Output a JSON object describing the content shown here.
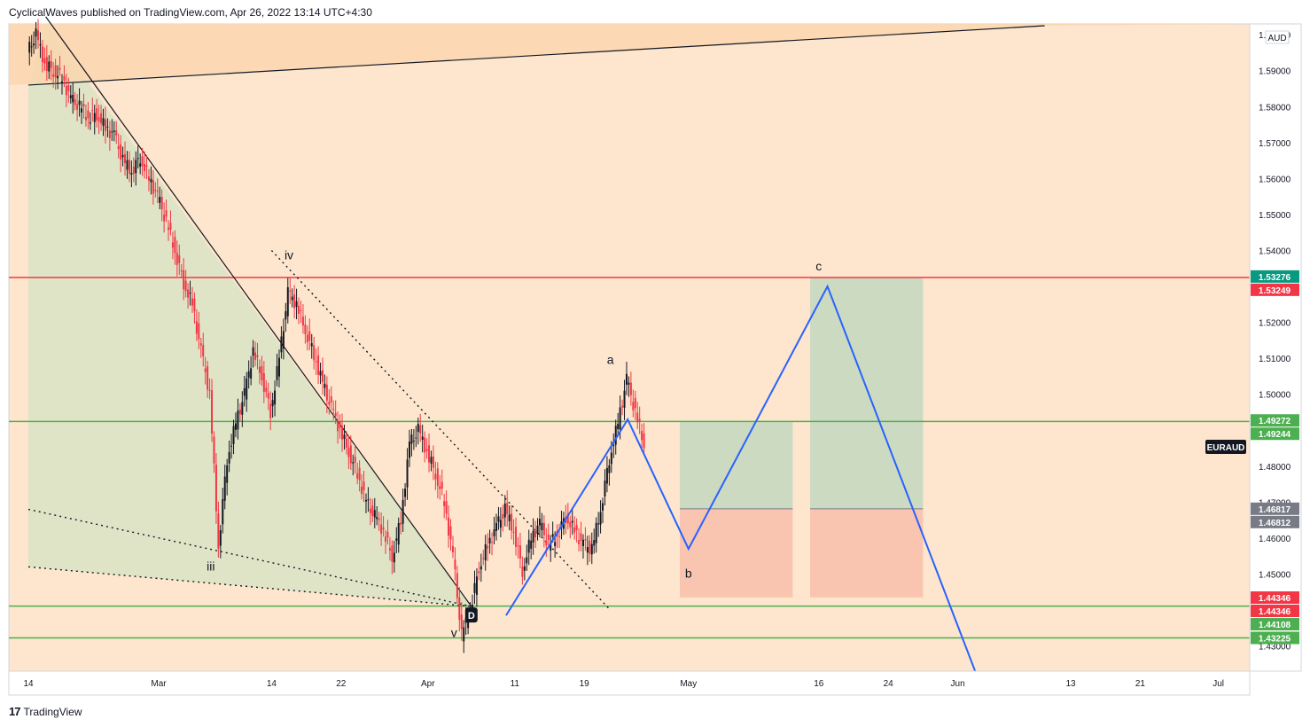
{
  "header": {
    "publisher": "CyclicalWaves published on TradingView.com, Apr 26, 2022 13:14 UTC+4:30"
  },
  "footer": {
    "logo": "17",
    "brand": "TradingView"
  },
  "chart_data": {
    "type": "candlestick",
    "symbol": "EURAUD",
    "currency": "AUD",
    "ylim": [
      1.423,
      1.603
    ],
    "y_ticks": [
      {
        "value": 1.6,
        "label": "1.60000"
      },
      {
        "value": 1.59,
        "label": "1.59000"
      },
      {
        "value": 1.58,
        "label": "1.58000"
      },
      {
        "value": 1.57,
        "label": "1.57000"
      },
      {
        "value": 1.56,
        "label": "1.56000"
      },
      {
        "value": 1.55,
        "label": "1.55000"
      },
      {
        "value": 1.54,
        "label": "1.54000"
      },
      {
        "value": 1.53,
        "label": "1.53000"
      },
      {
        "value": 1.52,
        "label": "1.52000"
      },
      {
        "value": 1.51,
        "label": "1.51000"
      },
      {
        "value": 1.5,
        "label": "1.50000"
      },
      {
        "value": 1.49,
        "label": "1.49000"
      },
      {
        "value": 1.48,
        "label": "1.48000"
      },
      {
        "value": 1.47,
        "label": "1.47000"
      },
      {
        "value": 1.46,
        "label": "1.46000"
      },
      {
        "value": 1.45,
        "label": "1.45000"
      },
      {
        "value": 1.43,
        "label": "1.43000"
      }
    ],
    "x_ticks": [
      {
        "day": 0,
        "label": "14"
      },
      {
        "day": 15,
        "label": "Mar"
      },
      {
        "day": 28,
        "label": "14"
      },
      {
        "day": 36,
        "label": "22"
      },
      {
        "day": 46,
        "label": "Apr"
      },
      {
        "day": 56,
        "label": "11"
      },
      {
        "day": 64,
        "label": "19"
      },
      {
        "day": 76,
        "label": "May"
      },
      {
        "day": 91,
        "label": "16"
      },
      {
        "day": 99,
        "label": "24"
      },
      {
        "day": 107,
        "label": "Jun"
      },
      {
        "day": 120,
        "label": "13"
      },
      {
        "day": 128,
        "label": "21"
      },
      {
        "day": 137,
        "label": "Jul"
      }
    ],
    "price_badges": [
      {
        "value": 1.53276,
        "label": "1.53276",
        "color": "#089981"
      },
      {
        "value": 1.53249,
        "label": "1.53249",
        "color": "#f23645"
      },
      {
        "value": 1.49272,
        "label": "1.49272",
        "color": "#4caf50"
      },
      {
        "value": 1.49244,
        "label": "1.49244",
        "color": "#4caf50"
      },
      {
        "value": 1.46817,
        "label": "1.46817",
        "color": "#787b86"
      },
      {
        "value": 1.46812,
        "label": "1.46812",
        "color": "#787b86"
      },
      {
        "value": 1.44346,
        "label": "1.44346",
        "color": "#f23645"
      },
      {
        "value": 1.44346,
        "label": "1.44346",
        "color": "#f23645"
      },
      {
        "value": 1.44108,
        "label": "1.44108",
        "color": "#4caf50"
      },
      {
        "value": 1.43225,
        "label": "1.43225",
        "color": "#4caf50"
      }
    ],
    "horizontal_lines": [
      {
        "value": 1.53249,
        "color": "#f23645"
      },
      {
        "value": 1.49244,
        "color": "#4caf50"
      },
      {
        "value": 1.44108,
        "color": "#4caf50"
      },
      {
        "value": 1.43225,
        "color": "#4caf50"
      }
    ],
    "wave_labels": [
      {
        "label": "iv",
        "day": 30,
        "value": 1.5375
      },
      {
        "label": "iii",
        "day": 21,
        "value": 1.451
      },
      {
        "label": "v",
        "day": 49,
        "value": 1.4325
      },
      {
        "label": "D",
        "day": 51,
        "value": 1.4385
      },
      {
        "label": "a",
        "day": 67,
        "value": 1.5085
      },
      {
        "label": "b",
        "day": 76,
        "value": 1.449
      },
      {
        "label": "c",
        "day": 91,
        "value": 1.5345
      }
    ],
    "projection_path": [
      {
        "day": 55,
        "value": 1.4385
      },
      {
        "day": 69,
        "value": 1.493
      },
      {
        "day": 76,
        "value": 1.457
      },
      {
        "day": 92,
        "value": 1.53
      },
      {
        "day": 109,
        "value": 1.42
      }
    ],
    "trend_lines": [
      {
        "style": "solid",
        "from": {
          "day": 2,
          "value": 1.605
        },
        "to": {
          "day": 51,
          "value": 1.441
        }
      },
      {
        "style": "dotted",
        "from": {
          "day": 28,
          "value": 1.54
        },
        "to": {
          "day": 67,
          "value": 1.44
        }
      },
      {
        "style": "solid",
        "from": {
          "day": 0,
          "value": 1.586
        },
        "to": {
          "day": 117,
          "value": 1.6025
        }
      },
      {
        "style": "dotted",
        "from": {
          "day": 0,
          "value": 1.468
        },
        "to": {
          "day": 51,
          "value": 1.441
        }
      },
      {
        "style": "dotted",
        "from": {
          "day": 0,
          "value": 1.452
        },
        "to": {
          "day": 51,
          "value": 1.441
        }
      }
    ],
    "position_boxes": [
      {
        "day_start": 75,
        "day_end": 88,
        "entry": 1.46815,
        "target": 1.4925,
        "stop": 1.4435
      },
      {
        "day_start": 90,
        "day_end": 103,
        "entry": 1.46815,
        "target": 1.5326,
        "stop": 1.4435
      }
    ],
    "price_path": [
      {
        "day": 0,
        "value": 1.595
      },
      {
        "day": 1,
        "value": 1.6
      },
      {
        "day": 2,
        "value": 1.592
      },
      {
        "day": 3,
        "value": 1.59
      },
      {
        "day": 4,
        "value": 1.588
      },
      {
        "day": 5,
        "value": 1.582
      },
      {
        "day": 6,
        "value": 1.58
      },
      {
        "day": 7,
        "value": 1.577
      },
      {
        "day": 8,
        "value": 1.578
      },
      {
        "day": 9,
        "value": 1.574
      },
      {
        "day": 10,
        "value": 1.572
      },
      {
        "day": 11,
        "value": 1.565
      },
      {
        "day": 12,
        "value": 1.562
      },
      {
        "day": 13,
        "value": 1.566
      },
      {
        "day": 14,
        "value": 1.56
      },
      {
        "day": 15,
        "value": 1.555
      },
      {
        "day": 16,
        "value": 1.548
      },
      {
        "day": 17,
        "value": 1.54
      },
      {
        "day": 18,
        "value": 1.531
      },
      {
        "day": 19,
        "value": 1.525
      },
      {
        "day": 20,
        "value": 1.512
      },
      {
        "day": 21,
        "value": 1.5
      },
      {
        "day": 22,
        "value": 1.458
      },
      {
        "day": 23,
        "value": 1.482
      },
      {
        "day": 24,
        "value": 1.492
      },
      {
        "day": 25,
        "value": 1.5
      },
      {
        "day": 26,
        "value": 1.512
      },
      {
        "day": 27,
        "value": 1.505
      },
      {
        "day": 28,
        "value": 1.495
      },
      {
        "day": 29,
        "value": 1.51
      },
      {
        "day": 30,
        "value": 1.528
      },
      {
        "day": 31,
        "value": 1.525
      },
      {
        "day": 32,
        "value": 1.518
      },
      {
        "day": 33,
        "value": 1.511
      },
      {
        "day": 34,
        "value": 1.503
      },
      {
        "day": 35,
        "value": 1.496
      },
      {
        "day": 36,
        "value": 1.49
      },
      {
        "day": 37,
        "value": 1.484
      },
      {
        "day": 38,
        "value": 1.478
      },
      {
        "day": 39,
        "value": 1.47
      },
      {
        "day": 40,
        "value": 1.466
      },
      {
        "day": 41,
        "value": 1.462
      },
      {
        "day": 42,
        "value": 1.455
      },
      {
        "day": 43,
        "value": 1.465
      },
      {
        "day": 44,
        "value": 1.486
      },
      {
        "day": 45,
        "value": 1.49
      },
      {
        "day": 46,
        "value": 1.484
      },
      {
        "day": 47,
        "value": 1.478
      },
      {
        "day": 48,
        "value": 1.47
      },
      {
        "day": 49,
        "value": 1.455
      },
      {
        "day": 50,
        "value": 1.433
      },
      {
        "day": 51,
        "value": 1.44
      },
      {
        "day": 52,
        "value": 1.452
      },
      {
        "day": 53,
        "value": 1.458
      },
      {
        "day": 54,
        "value": 1.463
      },
      {
        "day": 55,
        "value": 1.468
      },
      {
        "day": 56,
        "value": 1.462
      },
      {
        "day": 57,
        "value": 1.451
      },
      {
        "day": 58,
        "value": 1.46
      },
      {
        "day": 59,
        "value": 1.464
      },
      {
        "day": 60,
        "value": 1.458
      },
      {
        "day": 61,
        "value": 1.461
      },
      {
        "day": 62,
        "value": 1.466
      },
      {
        "day": 63,
        "value": 1.462
      },
      {
        "day": 64,
        "value": 1.458
      },
      {
        "day": 65,
        "value": 1.457
      },
      {
        "day": 66,
        "value": 1.468
      },
      {
        "day": 67,
        "value": 1.482
      },
      {
        "day": 68,
        "value": 1.492
      },
      {
        "day": 69,
        "value": 1.504
      },
      {
        "day": 70,
        "value": 1.495
      },
      {
        "day": 71,
        "value": 1.486
      }
    ]
  }
}
